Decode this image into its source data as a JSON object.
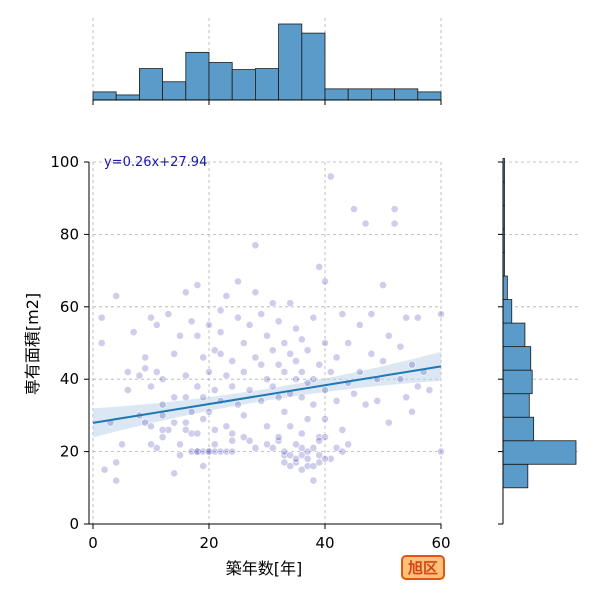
{
  "badge_label": "旭区",
  "colors": {
    "points": "#1f1fa8",
    "trend_line": "#1f77b4",
    "confidence_band": "#bdd3ea",
    "histogram_fill": "#5b9bc9",
    "badge_border": "#e0561a",
    "badge_fill": "#ffc178",
    "equation_text": "#1a1aa6"
  },
  "chart_data": {
    "type": "scatter",
    "xlabel": "築年数[年]",
    "ylabel": "専有面積[m2]",
    "xlim": [
      0,
      60
    ],
    "ylim": [
      0,
      100
    ],
    "x_ticks": [
      "0",
      "20",
      "40",
      "60"
    ],
    "y_ticks": [
      "0",
      "20",
      "40",
      "60",
      "80",
      "100"
    ],
    "grid": true,
    "regression": {
      "equation": "y=0.26x+27.94",
      "slope": 0.26,
      "intercept": 27.94,
      "band": true
    },
    "histogram_x": {
      "bin_edges": [
        0,
        4,
        8,
        12,
        16,
        20,
        24,
        28,
        32,
        36,
        40,
        44,
        48,
        52,
        56,
        60
      ],
      "counts": [
        8,
        5,
        31,
        18,
        47,
        37,
        30,
        31,
        75,
        66,
        11,
        11,
        11,
        11,
        8
      ]
    },
    "histogram_y": {
      "bin_edges": [
        10,
        16.5,
        23,
        29.5,
        36,
        42.5,
        49,
        55.5,
        62,
        68.5,
        75,
        81.5,
        88,
        94.5,
        101
      ],
      "counts": [
        17,
        50,
        21,
        18,
        20,
        19,
        15,
        6,
        3,
        1,
        1,
        1,
        1,
        1
      ]
    },
    "points": [
      [
        1.5,
        57
      ],
      [
        1.5,
        50
      ],
      [
        2,
        15
      ],
      [
        3,
        28
      ],
      [
        4,
        12
      ],
      [
        4,
        17
      ],
      [
        5,
        22
      ],
      [
        4,
        63
      ],
      [
        6,
        37
      ],
      [
        6,
        42
      ],
      [
        7,
        53
      ],
      [
        8,
        41
      ],
      [
        8,
        30
      ],
      [
        9,
        43
      ],
      [
        9,
        46
      ],
      [
        9,
        28
      ],
      [
        10,
        22
      ],
      [
        10,
        57
      ],
      [
        10,
        38
      ],
      [
        11,
        55
      ],
      [
        11,
        42
      ],
      [
        11,
        21
      ],
      [
        12,
        33
      ],
      [
        12,
        24
      ],
      [
        12,
        40
      ],
      [
        12,
        30
      ],
      [
        13,
        26
      ],
      [
        13,
        58
      ],
      [
        14,
        14
      ],
      [
        14,
        35
      ],
      [
        14,
        47
      ],
      [
        15,
        22
      ],
      [
        15,
        52
      ],
      [
        15,
        19
      ],
      [
        16,
        28
      ],
      [
        16,
        35
      ],
      [
        16,
        64
      ],
      [
        16,
        41
      ],
      [
        17,
        31
      ],
      [
        17,
        25
      ],
      [
        17,
        56
      ],
      [
        18,
        38
      ],
      [
        18,
        66
      ],
      [
        18,
        52
      ],
      [
        18,
        20
      ],
      [
        19,
        46
      ],
      [
        19,
        35
      ],
      [
        19,
        29
      ],
      [
        19,
        16
      ],
      [
        20,
        20
      ],
      [
        20,
        55
      ],
      [
        20,
        42
      ],
      [
        20,
        31
      ],
      [
        21,
        48
      ],
      [
        21,
        37
      ],
      [
        21,
        22
      ],
      [
        22,
        59
      ],
      [
        22,
        47
      ],
      [
        22,
        34
      ],
      [
        22,
        53
      ],
      [
        23,
        41
      ],
      [
        23,
        27
      ],
      [
        23,
        63
      ],
      [
        24,
        38
      ],
      [
        24,
        23
      ],
      [
        24,
        45
      ],
      [
        25,
        67
      ],
      [
        25,
        57
      ],
      [
        25,
        33
      ],
      [
        26,
        50
      ],
      [
        26,
        42
      ],
      [
        26,
        30
      ],
      [
        27,
        55
      ],
      [
        27,
        37
      ],
      [
        28,
        64
      ],
      [
        28,
        46
      ],
      [
        28,
        77
      ],
      [
        29,
        34
      ],
      [
        29,
        58
      ],
      [
        29,
        44
      ],
      [
        30,
        40
      ],
      [
        30,
        52
      ],
      [
        30,
        27
      ],
      [
        31,
        48
      ],
      [
        31,
        38
      ],
      [
        31,
        61
      ],
      [
        32,
        44
      ],
      [
        32,
        35
      ],
      [
        32,
        56
      ],
      [
        32,
        23
      ],
      [
        33,
        50
      ],
      [
        33,
        42
      ],
      [
        33,
        31
      ],
      [
        33,
        19
      ],
      [
        34,
        47
      ],
      [
        34,
        36
      ],
      [
        34,
        61
      ],
      [
        34,
        27
      ],
      [
        35,
        45
      ],
      [
        35,
        40
      ],
      [
        35,
        54
      ],
      [
        35,
        17
      ],
      [
        36,
        42
      ],
      [
        36,
        35
      ],
      [
        36,
        51
      ],
      [
        36,
        15
      ],
      [
        37,
        48
      ],
      [
        37,
        39
      ],
      [
        37,
        29
      ],
      [
        37,
        20
      ],
      [
        38,
        40
      ],
      [
        38,
        57
      ],
      [
        38,
        33
      ],
      [
        38,
        12
      ],
      [
        39,
        44
      ],
      [
        39,
        71
      ],
      [
        39,
        24
      ],
      [
        40,
        50
      ],
      [
        40,
        37
      ],
      [
        40,
        67
      ],
      [
        40,
        29
      ],
      [
        41,
        96
      ],
      [
        41,
        42
      ],
      [
        41,
        18
      ],
      [
        42,
        46
      ],
      [
        42,
        34
      ],
      [
        43,
        58
      ],
      [
        43,
        26
      ],
      [
        44,
        50
      ],
      [
        44,
        39
      ],
      [
        45,
        87
      ],
      [
        45,
        36
      ],
      [
        46,
        55
      ],
      [
        46,
        42
      ],
      [
        47,
        83
      ],
      [
        47,
        33
      ],
      [
        48,
        47
      ],
      [
        48,
        58
      ],
      [
        49,
        40
      ],
      [
        49,
        34
      ],
      [
        50,
        66
      ],
      [
        50,
        45
      ],
      [
        51,
        52
      ],
      [
        51,
        28
      ],
      [
        52,
        87
      ],
      [
        52,
        83
      ],
      [
        53,
        49
      ],
      [
        53,
        40
      ],
      [
        54,
        35
      ],
      [
        54,
        57
      ],
      [
        55,
        44
      ],
      [
        55,
        31
      ],
      [
        56,
        38
      ],
      [
        56,
        57
      ],
      [
        57,
        42
      ],
      [
        58,
        37
      ],
      [
        60,
        58
      ],
      [
        60,
        20
      ],
      [
        33,
        20
      ],
      [
        34,
        19
      ],
      [
        36,
        19
      ],
      [
        37,
        18
      ],
      [
        38,
        21
      ],
      [
        39,
        17
      ],
      [
        35,
        18
      ],
      [
        33,
        17
      ],
      [
        36,
        21
      ],
      [
        37,
        16
      ],
      [
        39,
        19
      ],
      [
        40,
        18
      ],
      [
        17,
        20
      ],
      [
        18,
        20
      ],
      [
        19,
        20
      ],
      [
        20,
        20
      ],
      [
        21,
        20
      ],
      [
        22,
        20
      ],
      [
        23,
        20
      ],
      [
        24,
        20
      ],
      [
        16,
        26
      ],
      [
        18,
        25
      ],
      [
        21,
        26
      ],
      [
        24,
        25
      ],
      [
        26,
        24
      ],
      [
        10,
        27
      ],
      [
        12,
        26
      ],
      [
        14,
        28
      ],
      [
        30,
        22
      ],
      [
        31,
        21
      ],
      [
        32,
        24
      ],
      [
        34,
        16
      ],
      [
        35,
        22
      ],
      [
        36,
        25
      ],
      [
        38,
        16
      ],
      [
        39,
        23
      ],
      [
        40,
        24
      ],
      [
        42,
        21
      ],
      [
        43,
        20
      ],
      [
        44,
        22
      ],
      [
        27,
        23
      ],
      [
        28,
        21
      ]
    ]
  }
}
